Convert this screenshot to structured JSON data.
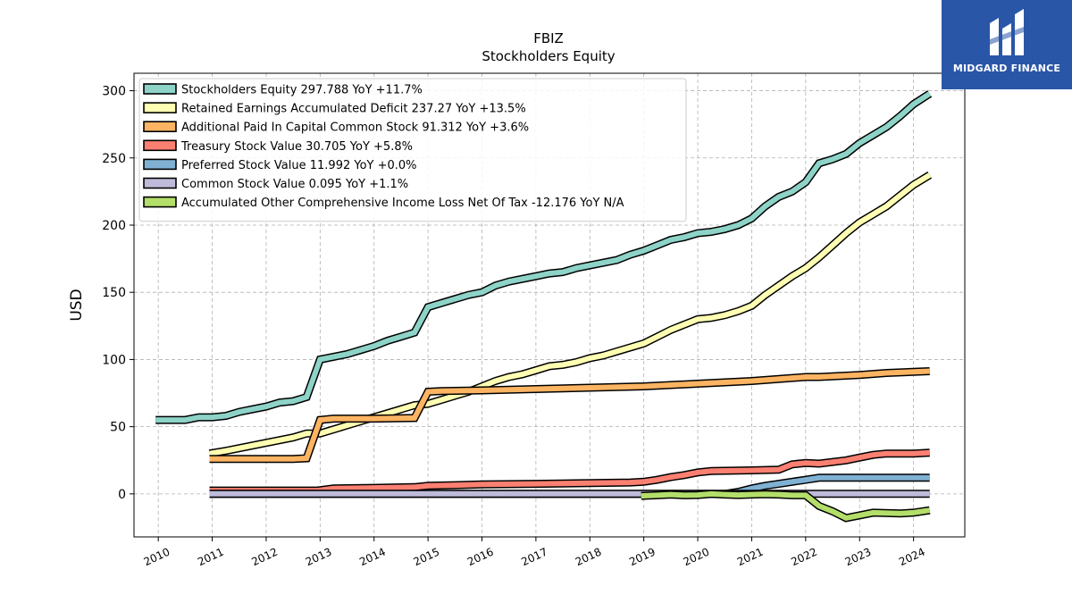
{
  "brand": {
    "name": "MIDGARD FINANCE"
  },
  "chart_data": {
    "type": "line",
    "title": "FBIZ",
    "subtitle": "Stockholders  Equity",
    "ylabel": "USD",
    "xlabel": "",
    "xlim": [
      2009.55,
      2024.95
    ],
    "ylim": [
      -32,
      313
    ],
    "yticks": [
      0,
      50,
      100,
      150,
      200,
      250,
      300
    ],
    "xticks": [
      2010,
      2011,
      2012,
      2013,
      2014,
      2015,
      2016,
      2017,
      2018,
      2019,
      2020,
      2021,
      2022,
      2023,
      2024
    ],
    "grid": true,
    "legend_position": "top-left",
    "series": [
      {
        "name": "Stockholders Equity",
        "legend": "Stockholders Equity  297.788 YoY +11.7%",
        "color": "#8dd3c7",
        "points": [
          [
            2009.95,
            55
          ],
          [
            2010.25,
            55
          ],
          [
            2010.5,
            55
          ],
          [
            2010.75,
            57
          ],
          [
            2011.0,
            57
          ],
          [
            2011.25,
            58
          ],
          [
            2011.5,
            61
          ],
          [
            2011.75,
            63
          ],
          [
            2012.0,
            65
          ],
          [
            2012.25,
            68
          ],
          [
            2012.5,
            69
          ],
          [
            2012.75,
            72
          ],
          [
            2013.0,
            100
          ],
          [
            2013.25,
            102
          ],
          [
            2013.5,
            104
          ],
          [
            2013.75,
            107
          ],
          [
            2014.0,
            110
          ],
          [
            2014.25,
            114
          ],
          [
            2014.5,
            117
          ],
          [
            2014.75,
            120
          ],
          [
            2015.0,
            139
          ],
          [
            2015.25,
            142
          ],
          [
            2015.5,
            145
          ],
          [
            2015.75,
            148
          ],
          [
            2016.0,
            150
          ],
          [
            2016.25,
            155
          ],
          [
            2016.5,
            158
          ],
          [
            2016.75,
            160
          ],
          [
            2017.0,
            162
          ],
          [
            2017.25,
            164
          ],
          [
            2017.5,
            165
          ],
          [
            2017.75,
            168
          ],
          [
            2018.0,
            170
          ],
          [
            2018.25,
            172
          ],
          [
            2018.5,
            174
          ],
          [
            2018.75,
            178
          ],
          [
            2019.0,
            181
          ],
          [
            2019.25,
            185
          ],
          [
            2019.5,
            189
          ],
          [
            2019.75,
            191
          ],
          [
            2020.0,
            194
          ],
          [
            2020.25,
            195
          ],
          [
            2020.5,
            197
          ],
          [
            2020.75,
            200
          ],
          [
            2021.0,
            205
          ],
          [
            2021.25,
            214
          ],
          [
            2021.5,
            221
          ],
          [
            2021.75,
            225
          ],
          [
            2022.0,
            232
          ],
          [
            2022.25,
            246
          ],
          [
            2022.5,
            249
          ],
          [
            2022.75,
            253
          ],
          [
            2023.0,
            261
          ],
          [
            2023.25,
            267
          ],
          [
            2023.5,
            273
          ],
          [
            2023.75,
            281
          ],
          [
            2024.0,
            290
          ],
          [
            2024.3,
            297.788
          ]
        ]
      },
      {
        "name": "Retained Earnings Accumulated Deficit",
        "legend": "Retained Earnings Accumulated Deficit  237.27 YoY +13.5%",
        "color": "#ffffb3",
        "points": [
          [
            2010.95,
            30
          ],
          [
            2011.25,
            32
          ],
          [
            2011.5,
            34
          ],
          [
            2011.75,
            36
          ],
          [
            2012.0,
            38
          ],
          [
            2012.25,
            40
          ],
          [
            2012.5,
            42
          ],
          [
            2012.75,
            45
          ],
          [
            2013.0,
            45
          ],
          [
            2013.25,
            48
          ],
          [
            2013.5,
            51
          ],
          [
            2013.75,
            54
          ],
          [
            2014.0,
            57
          ],
          [
            2014.25,
            60
          ],
          [
            2014.5,
            63
          ],
          [
            2014.75,
            66
          ],
          [
            2015.0,
            67
          ],
          [
            2015.25,
            70
          ],
          [
            2015.5,
            73
          ],
          [
            2015.75,
            76
          ],
          [
            2016.0,
            80
          ],
          [
            2016.25,
            84
          ],
          [
            2016.5,
            87
          ],
          [
            2016.75,
            89
          ],
          [
            2017.0,
            92
          ],
          [
            2017.25,
            95
          ],
          [
            2017.5,
            96
          ],
          [
            2017.75,
            98
          ],
          [
            2018.0,
            101
          ],
          [
            2018.25,
            103
          ],
          [
            2018.5,
            106
          ],
          [
            2018.75,
            109
          ],
          [
            2019.0,
            112
          ],
          [
            2019.25,
            117
          ],
          [
            2019.5,
            122
          ],
          [
            2019.75,
            126
          ],
          [
            2020.0,
            130
          ],
          [
            2020.25,
            131
          ],
          [
            2020.5,
            133
          ],
          [
            2020.75,
            136
          ],
          [
            2021.0,
            140
          ],
          [
            2021.25,
            148
          ],
          [
            2021.5,
            155
          ],
          [
            2021.75,
            162
          ],
          [
            2022.0,
            168
          ],
          [
            2022.25,
            176
          ],
          [
            2022.5,
            185
          ],
          [
            2022.75,
            194
          ],
          [
            2023.0,
            202
          ],
          [
            2023.25,
            208
          ],
          [
            2023.5,
            214
          ],
          [
            2023.75,
            222
          ],
          [
            2024.0,
            230
          ],
          [
            2024.3,
            237.27
          ]
        ]
      },
      {
        "name": "Additional Paid In Capital Common Stock",
        "legend": "Additional Paid In Capital Common Stock  91.312 YoY +3.6%",
        "color": "#fdb462",
        "points": [
          [
            2010.95,
            26
          ],
          [
            2012.5,
            26
          ],
          [
            2012.75,
            26.5
          ],
          [
            2013.0,
            55
          ],
          [
            2013.25,
            56
          ],
          [
            2014.0,
            56
          ],
          [
            2014.75,
            56.5
          ],
          [
            2015.0,
            76
          ],
          [
            2015.25,
            76.5
          ],
          [
            2016.0,
            77
          ],
          [
            2017.0,
            78
          ],
          [
            2018.0,
            79
          ],
          [
            2019.0,
            80
          ],
          [
            2020.0,
            82
          ],
          [
            2021.0,
            84
          ],
          [
            2022.0,
            87
          ],
          [
            2022.25,
            87
          ],
          [
            2023.0,
            88.5
          ],
          [
            2023.5,
            90
          ],
          [
            2024.3,
            91.312
          ]
        ]
      },
      {
        "name": "Treasury Stock Value",
        "legend": "Treasury Stock Value  30.705 YoY +5.8%",
        "color": "#fb8072",
        "points": [
          [
            2010.95,
            2.5
          ],
          [
            2012.95,
            2.5
          ],
          [
            2013.25,
            4
          ],
          [
            2014.0,
            4.5
          ],
          [
            2014.75,
            5
          ],
          [
            2015.0,
            6
          ],
          [
            2015.5,
            6.5
          ],
          [
            2016.0,
            7
          ],
          [
            2017.0,
            7.5
          ],
          [
            2018.0,
            8
          ],
          [
            2018.75,
            8.5
          ],
          [
            2019.0,
            9
          ],
          [
            2019.25,
            10.5
          ],
          [
            2019.5,
            12.5
          ],
          [
            2019.75,
            14
          ],
          [
            2020.0,
            16
          ],
          [
            2020.25,
            17
          ],
          [
            2021.0,
            17.5
          ],
          [
            2021.5,
            18
          ],
          [
            2021.75,
            22
          ],
          [
            2022.0,
            23
          ],
          [
            2022.25,
            22.5
          ],
          [
            2022.75,
            25
          ],
          [
            2023.0,
            27
          ],
          [
            2023.25,
            29
          ],
          [
            2023.5,
            30
          ],
          [
            2024.0,
            30
          ],
          [
            2024.3,
            30.705
          ]
        ]
      },
      {
        "name": "Preferred Stock Value",
        "legend": "Preferred Stock Value  11.992 YoY +0.0%",
        "color": "#80b1d3",
        "points": [
          [
            2010.95,
            0
          ],
          [
            2020.5,
            0
          ],
          [
            2020.75,
            1.5
          ],
          [
            2021.0,
            4
          ],
          [
            2021.25,
            6
          ],
          [
            2021.5,
            7.5
          ],
          [
            2021.75,
            9
          ],
          [
            2022.0,
            10.5
          ],
          [
            2022.25,
            11.992
          ],
          [
            2024.3,
            11.992
          ]
        ]
      },
      {
        "name": "Common Stock Value",
        "legend": "Common Stock Value  0.095 YoY +1.1%",
        "color": "#bebada",
        "points": [
          [
            2010.95,
            0.09
          ],
          [
            2024.3,
            0.095
          ]
        ]
      },
      {
        "name": "Accumulated Other Comprehensive Income Loss Net Of Tax",
        "legend": "Accumulated Other Comprehensive Income Loss Net Of Tax  -12.176 YoY N/A",
        "color": "#b3de69",
        "points": [
          [
            2018.95,
            -1.5
          ],
          [
            2019.25,
            -1
          ],
          [
            2019.5,
            -0.5
          ],
          [
            2019.75,
            -1
          ],
          [
            2020.0,
            -0.8
          ],
          [
            2020.25,
            0
          ],
          [
            2020.5,
            -0.5
          ],
          [
            2020.75,
            -0.8
          ],
          [
            2021.0,
            -0.5
          ],
          [
            2021.25,
            -0.3
          ],
          [
            2021.5,
            -0.5
          ],
          [
            2021.75,
            -1
          ],
          [
            2022.0,
            -1
          ],
          [
            2022.25,
            -9
          ],
          [
            2022.5,
            -13
          ],
          [
            2022.75,
            -18
          ],
          [
            2023.0,
            -16
          ],
          [
            2023.25,
            -14
          ],
          [
            2023.75,
            -14.5
          ],
          [
            2024.0,
            -14
          ],
          [
            2024.3,
            -12.176
          ]
        ]
      }
    ]
  }
}
